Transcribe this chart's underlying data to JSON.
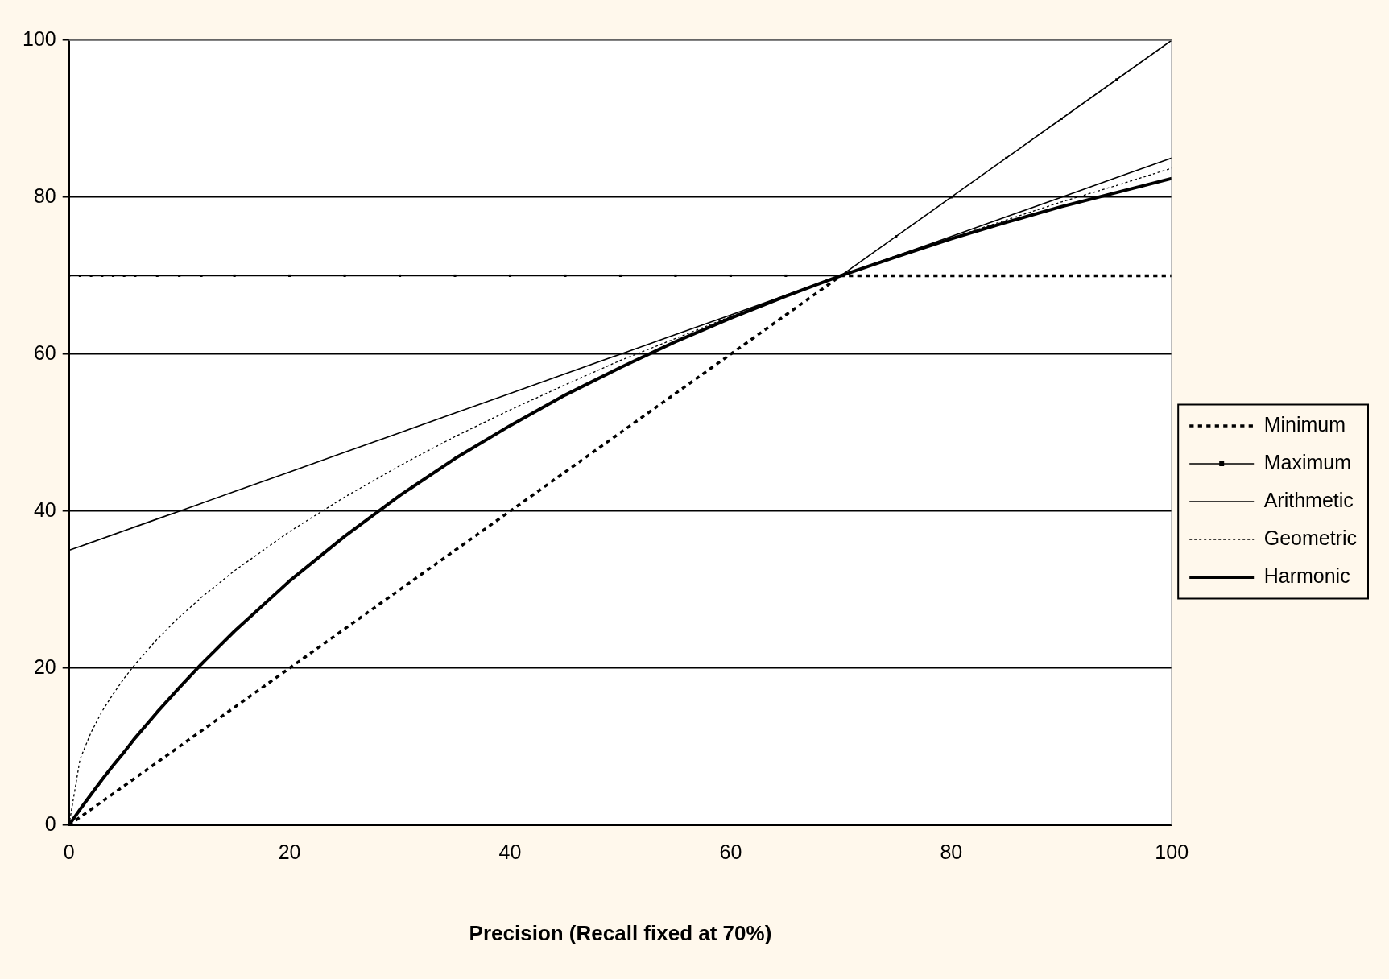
{
  "chart_data": {
    "type": "line",
    "xlabel": "Precision (Recall fixed at 70%)",
    "x": [
      0,
      1,
      2,
      3,
      4,
      5,
      6,
      8,
      10,
      12,
      15,
      20,
      25,
      30,
      35,
      40,
      45,
      50,
      55,
      60,
      65,
      70,
      75,
      80,
      85,
      90,
      95,
      100
    ],
    "series": [
      {
        "name": "Minimum",
        "color": "#000000",
        "line_style": "dotted",
        "marker": "none",
        "values": [
          0,
          1,
          2,
          3,
          4,
          5,
          6,
          8,
          10,
          12,
          15,
          20,
          25,
          30,
          35,
          40,
          45,
          50,
          55,
          60,
          65,
          70,
          70,
          70,
          70,
          70,
          70,
          70
        ]
      },
      {
        "name": "Maximum",
        "color": "#000000",
        "line_style": "solid",
        "marker": "square",
        "values": [
          70,
          70,
          70,
          70,
          70,
          70,
          70,
          70,
          70,
          70,
          70,
          70,
          70,
          70,
          70,
          70,
          70,
          70,
          70,
          70,
          70,
          70,
          75,
          80,
          85,
          90,
          95,
          100
        ]
      },
      {
        "name": "Arithmetic",
        "color": "#000000",
        "line_style": "solid",
        "marker": "none",
        "values": [
          35,
          35.5,
          36,
          36.5,
          37,
          37.5,
          38,
          39,
          40,
          41,
          42.5,
          45,
          47.5,
          50,
          52.5,
          55,
          57.5,
          60,
          62.5,
          65,
          67.5,
          70,
          72.5,
          75,
          77.5,
          80,
          82.5,
          85
        ]
      },
      {
        "name": "Geometric",
        "color": "#000000",
        "line_style": "dotted",
        "marker": "none",
        "values": [
          0,
          8.4,
          11.8,
          14.5,
          16.7,
          18.7,
          20.5,
          23.7,
          26.5,
          29,
          32.4,
          37.4,
          41.8,
          45.8,
          49.5,
          52.9,
          56.1,
          59.2,
          62,
          64.8,
          67.5,
          70,
          72.5,
          74.8,
          77.1,
          79.4,
          81.5,
          83.7
        ]
      },
      {
        "name": "Harmonic",
        "color": "#000000",
        "line_style": "solid",
        "marker": "none",
        "values": [
          0,
          2,
          3.9,
          5.8,
          7.6,
          9.3,
          11.1,
          14.4,
          17.5,
          20.5,
          24.7,
          31.1,
          36.8,
          42,
          46.7,
          50.9,
          54.8,
          58.3,
          61.6,
          64.6,
          67.4,
          70,
          72.4,
          74.7,
          76.8,
          78.8,
          80.6,
          82.4
        ]
      }
    ],
    "xlim": [
      0,
      100
    ],
    "xticks": [
      0,
      20,
      40,
      60,
      80,
      100
    ],
    "ylim": [
      0,
      100
    ],
    "yticks": [
      0,
      20,
      40,
      60,
      80,
      100
    ],
    "grid": "y",
    "legend": "right"
  }
}
